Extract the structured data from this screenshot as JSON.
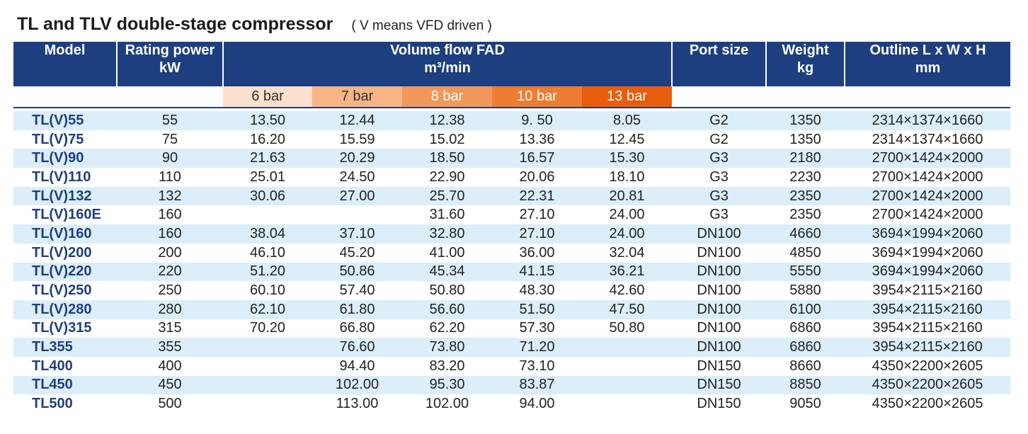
{
  "header": {
    "title": "TL and TLV double-stage compressor",
    "subtitle": "( V means VFD driven )"
  },
  "columns": {
    "model": "Model",
    "power": "Rating power",
    "power_unit": "kW",
    "flow": "Volume flow FAD",
    "flow_unit": "m³/min",
    "port": "Port size",
    "weight": "Weight",
    "weight_unit": "kg",
    "outline": "Outline L x W x H",
    "outline_unit": "mm"
  },
  "pressures": [
    "6 bar",
    "7 bar",
    "8 bar",
    "10 bar",
    "13 bar"
  ],
  "pressure_colors": [
    "#fde0cd",
    "#f7b585",
    "#f2975a",
    "#ee7d31",
    "#e85e0c"
  ],
  "rows": [
    {
      "model": "TL(V)55",
      "power": "55",
      "f6": "13.50",
      "f7": "12.44",
      "f8": "12.38",
      "f10": "9. 50",
      "f13": "8.05",
      "port": "G2",
      "weight": "1350",
      "outline": "2314×1374×1660"
    },
    {
      "model": "TL(V)75",
      "power": "75",
      "f6": "16.20",
      "f7": "15.59",
      "f8": "15.02",
      "f10": "13.36",
      "f13": "12.45",
      "port": "G2",
      "weight": "1350",
      "outline": "2314×1374×1660"
    },
    {
      "model": "TL(V)90",
      "power": "90",
      "f6": "21.63",
      "f7": "20.29",
      "f8": "18.50",
      "f10": "16.57",
      "f13": "15.30",
      "port": "G3",
      "weight": "2180",
      "outline": "2700×1424×2000"
    },
    {
      "model": "TL(V)110",
      "power": "110",
      "f6": "25.01",
      "f7": "24.50",
      "f8": "22.90",
      "f10": "20.06",
      "f13": "18.10",
      "port": "G3",
      "weight": "2230",
      "outline": "2700×1424×2000"
    },
    {
      "model": "TL(V)132",
      "power": "132",
      "f6": "30.06",
      "f7": "27.00",
      "f8": "25.70",
      "f10": "22.31",
      "f13": "20.81",
      "port": "G3",
      "weight": "2350",
      "outline": "2700×1424×2000"
    },
    {
      "model": "TL(V)160E",
      "power": "160",
      "f6": "",
      "f7": "",
      "f8": "31.60",
      "f10": "27.10",
      "f13": "24.00",
      "port": "G3",
      "weight": "2350",
      "outline": "2700×1424×2000"
    },
    {
      "model": "TL(V)160",
      "power": "160",
      "f6": "38.04",
      "f7": "37.10",
      "f8": "32.80",
      "f10": "27.10",
      "f13": "24.00",
      "port": "DN100",
      "weight": "4660",
      "outline": "3694×1994×2060"
    },
    {
      "model": "TL(V)200",
      "power": "200",
      "f6": "46.10",
      "f7": "45.20",
      "f8": "41.00",
      "f10": "36.00",
      "f13": "32.04",
      "port": "DN100",
      "weight": "4850",
      "outline": "3694×1994×2060"
    },
    {
      "model": "TL(V)220",
      "power": "220",
      "f6": "51.20",
      "f7": "50.86",
      "f8": "45.34",
      "f10": "41.15",
      "f13": "36.21",
      "port": "DN100",
      "weight": "5550",
      "outline": "3694×1994×2060"
    },
    {
      "model": "TL(V)250",
      "power": "250",
      "f6": "60.10",
      "f7": "57.40",
      "f8": "50.80",
      "f10": "48.30",
      "f13": "42.60",
      "port": "DN100",
      "weight": "5880",
      "outline": "3954×2115×2160"
    },
    {
      "model": "TL(V)280",
      "power": "280",
      "f6": "62.10",
      "f7": "61.80",
      "f8": "56.60",
      "f10": "51.50",
      "f13": "47.50",
      "port": "DN100",
      "weight": "6100",
      "outline": "3954×2115×2160"
    },
    {
      "model": "TL(V)315",
      "power": "315",
      "f6": "70.20",
      "f7": "66.80",
      "f8": "62.20",
      "f10": "57.30",
      "f13": "50.80",
      "port": "DN100",
      "weight": "6860",
      "outline": "3954×2115×2160"
    },
    {
      "model": "TL355",
      "power": "355",
      "f6": "",
      "f7": "76.60",
      "f8": "73.80",
      "f10": "71.20",
      "f13": "",
      "port": "DN100",
      "weight": "6860",
      "outline": "3954×2115×2160"
    },
    {
      "model": "TL400",
      "power": "400",
      "f6": "",
      "f7": "94.40",
      "f8": "83.20",
      "f10": "73.10",
      "f13": "",
      "port": "DN150",
      "weight": "8660",
      "outline": "4350×2200×2605"
    },
    {
      "model": "TL450",
      "power": "450",
      "f6": "",
      "f7": "102.00",
      "f8": "95.30",
      "f10": "83.87",
      "f13": "",
      "port": "DN150",
      "weight": "8850",
      "outline": "4350×2200×2605"
    },
    {
      "model": "TL500",
      "power": "500",
      "f6": "",
      "f7": "113.00",
      "f8": "102.00",
      "f10": "94.00",
      "f13": "",
      "port": "DN150",
      "weight": "9050",
      "outline": "4350×2200×2605"
    }
  ]
}
